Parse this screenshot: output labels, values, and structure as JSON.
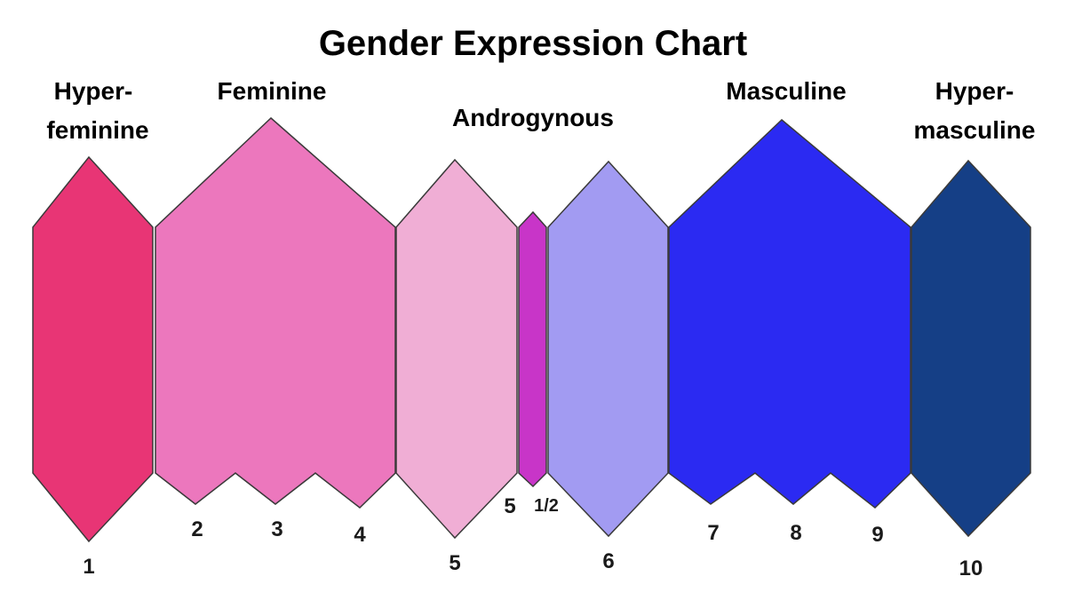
{
  "title": "Gender Expression Chart",
  "categories": {
    "hyper_feminine": [
      "Hyper-",
      "feminine"
    ],
    "feminine": "Feminine",
    "androgynous": "Androgynous",
    "masculine": "Masculine",
    "hyper_masculine": [
      "Hyper-",
      "masculine"
    ]
  },
  "scale_labels": {
    "n1": "1",
    "n2": "2",
    "n3": "3",
    "n4": "4",
    "n5": "5",
    "n5_half": "5",
    "n_half": "1/2",
    "n6": "6",
    "n7": "7",
    "n8": "8",
    "n9": "9",
    "n10": "10"
  },
  "colors": {
    "hyper_feminine": "#e83575",
    "feminine": "#ec77bd",
    "androgynous_feminine": "#f0aed5",
    "androgynous_center": "#c835c8",
    "androgynous_masculine": "#a29bf2",
    "masculine": "#2b2af2",
    "hyper_masculine": "#153f86"
  }
}
